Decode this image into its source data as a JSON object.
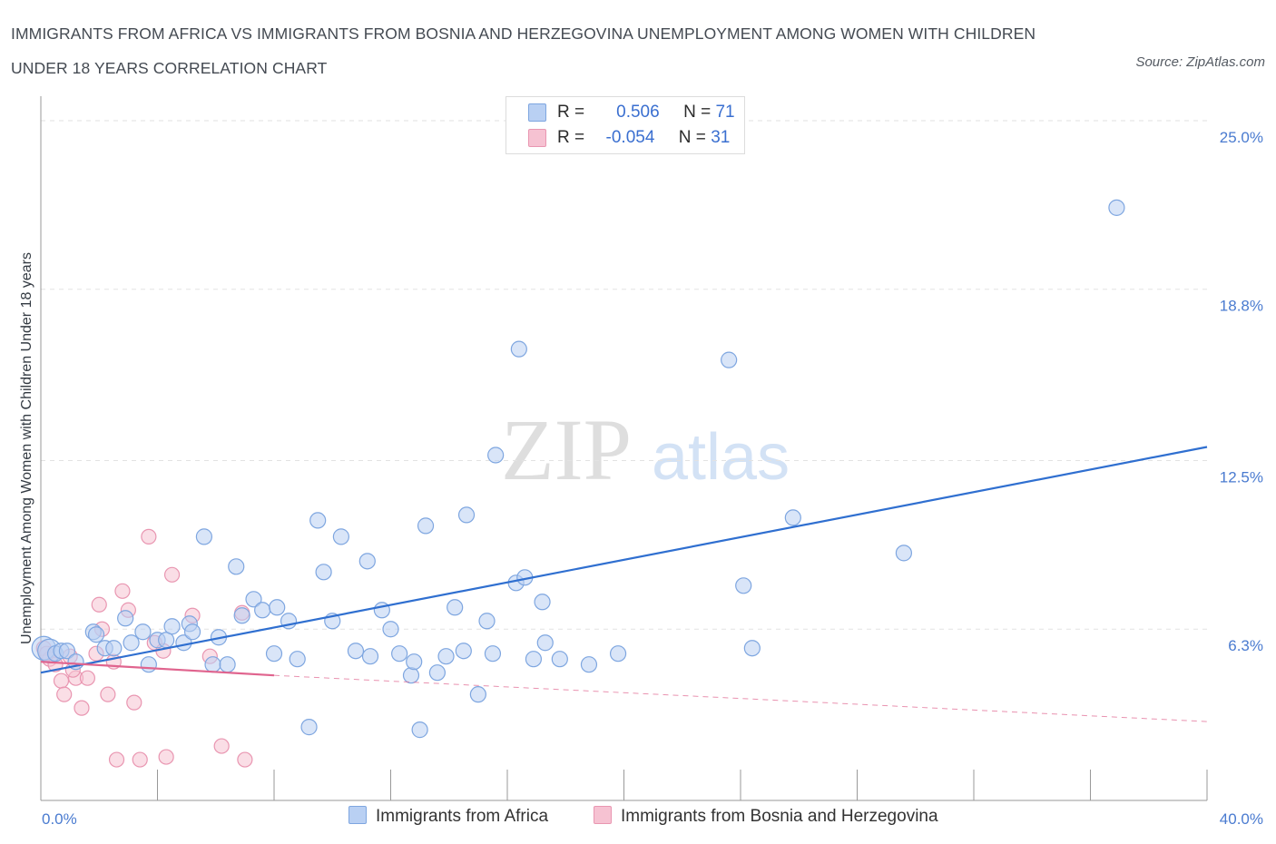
{
  "title": "IMMIGRANTS FROM AFRICA VS IMMIGRANTS FROM BOSNIA AND HERZEGOVINA UNEMPLOYMENT AMONG WOMEN WITH CHILDREN UNDER 18 YEARS CORRELATION CHART",
  "source": "Source: ZipAtlas.com",
  "watermark": {
    "zip": "ZIP",
    "atlas": "atlas"
  },
  "colors": {
    "africa_fill": "#b9d0f3",
    "africa_stroke": "#7ea6e0",
    "africa_line": "#2f6fd0",
    "bosnia_fill": "#f6c2d2",
    "bosnia_stroke": "#e996b1",
    "bosnia_line": "#e0648e",
    "axis_tick": "#4a7bd0",
    "grid": "#e2e2e2"
  },
  "legend": {
    "rows": [
      {
        "r_label": "R =",
        "r_value": "0.506",
        "n_label": "N =",
        "n_value": "71"
      },
      {
        "r_label": "R =",
        "r_value": "-0.054",
        "n_label": "N =",
        "n_value": "31"
      }
    ]
  },
  "chart_data": {
    "type": "scatter",
    "ylabel": "Unemployment Among Women with Children Under 18 years",
    "x_tick_labels": [
      "0.0%",
      "40.0%"
    ],
    "y_tick_labels": [
      "6.3%",
      "12.5%",
      "18.8%",
      "25.0%"
    ],
    "y_ticks": [
      6.3,
      12.5,
      18.8,
      25.0
    ],
    "xlim": [
      0,
      40
    ],
    "ylim": [
      0,
      25.5
    ],
    "grid": "horizontal dashed",
    "legend_placement": "top-center and bottom",
    "series": [
      {
        "name": "Immigrants from Africa",
        "trend": {
          "x": [
            0,
            40
          ],
          "y": [
            4.7,
            13.0
          ]
        },
        "points": [
          [
            0.1,
            5.6
          ],
          [
            0.3,
            5.5
          ],
          [
            0.5,
            5.4
          ],
          [
            0.7,
            5.5
          ],
          [
            0.9,
            5.5
          ],
          [
            1.2,
            5.1
          ],
          [
            1.8,
            6.2
          ],
          [
            1.9,
            6.1
          ],
          [
            2.2,
            5.6
          ],
          [
            2.5,
            5.6
          ],
          [
            2.9,
            6.7
          ],
          [
            3.1,
            5.8
          ],
          [
            3.5,
            6.2
          ],
          [
            3.7,
            5.0
          ],
          [
            4.0,
            5.9
          ],
          [
            4.3,
            5.9
          ],
          [
            4.5,
            6.4
          ],
          [
            4.9,
            5.8
          ],
          [
            5.1,
            6.5
          ],
          [
            5.2,
            6.2
          ],
          [
            5.6,
            9.7
          ],
          [
            5.9,
            5.0
          ],
          [
            6.1,
            6.0
          ],
          [
            6.4,
            5.0
          ],
          [
            6.7,
            8.6
          ],
          [
            6.9,
            6.8
          ],
          [
            7.3,
            7.4
          ],
          [
            7.6,
            7.0
          ],
          [
            8.0,
            5.4
          ],
          [
            8.1,
            7.1
          ],
          [
            8.5,
            6.6
          ],
          [
            8.8,
            5.2
          ],
          [
            9.2,
            2.7
          ],
          [
            9.5,
            10.3
          ],
          [
            9.7,
            8.4
          ],
          [
            10.0,
            6.6
          ],
          [
            10.3,
            9.7
          ],
          [
            10.8,
            5.5
          ],
          [
            11.2,
            8.8
          ],
          [
            11.3,
            5.3
          ],
          [
            11.7,
            7.0
          ],
          [
            12.0,
            6.3
          ],
          [
            12.3,
            5.4
          ],
          [
            12.7,
            4.6
          ],
          [
            12.8,
            5.1
          ],
          [
            13.0,
            2.6
          ],
          [
            13.2,
            10.1
          ],
          [
            13.6,
            4.7
          ],
          [
            13.9,
            5.3
          ],
          [
            14.2,
            7.1
          ],
          [
            14.5,
            5.5
          ],
          [
            14.6,
            10.5
          ],
          [
            15.0,
            3.9
          ],
          [
            15.3,
            6.6
          ],
          [
            15.5,
            5.4
          ],
          [
            15.6,
            12.7
          ],
          [
            16.3,
            8.0
          ],
          [
            16.4,
            16.6
          ],
          [
            16.6,
            8.2
          ],
          [
            16.9,
            5.2
          ],
          [
            17.2,
            7.3
          ],
          [
            17.3,
            5.8
          ],
          [
            17.8,
            5.2
          ],
          [
            18.8,
            5.0
          ],
          [
            19.8,
            5.4
          ],
          [
            23.6,
            16.2
          ],
          [
            24.1,
            7.9
          ],
          [
            24.4,
            5.6
          ],
          [
            25.8,
            10.4
          ],
          [
            29.6,
            9.1
          ],
          [
            36.9,
            21.8
          ]
        ]
      },
      {
        "name": "Immigrants from Bosnia and Herzegovina",
        "trend": {
          "x": [
            0,
            8.0
          ],
          "y": [
            5.1,
            4.6
          ]
        },
        "trend_extended": {
          "x": [
            8.0,
            40
          ],
          "y": [
            4.6,
            2.9
          ]
        },
        "points": [
          [
            0.1,
            5.6
          ],
          [
            0.3,
            5.2
          ],
          [
            0.5,
            5.0
          ],
          [
            0.7,
            4.4
          ],
          [
            0.8,
            3.9
          ],
          [
            1.0,
            5.3
          ],
          [
            1.2,
            4.5
          ],
          [
            1.4,
            3.4
          ],
          [
            1.6,
            4.5
          ],
          [
            1.9,
            5.4
          ],
          [
            2.0,
            7.2
          ],
          [
            2.1,
            6.3
          ],
          [
            2.3,
            3.9
          ],
          [
            2.5,
            5.1
          ],
          [
            2.6,
            1.5
          ],
          [
            2.8,
            7.7
          ],
          [
            3.0,
            7.0
          ],
          [
            3.2,
            3.6
          ],
          [
            3.4,
            1.5
          ],
          [
            3.7,
            9.7
          ],
          [
            3.9,
            5.8
          ],
          [
            4.2,
            5.5
          ],
          [
            4.3,
            1.6
          ],
          [
            4.5,
            8.3
          ],
          [
            5.2,
            6.8
          ],
          [
            5.8,
            5.3
          ],
          [
            6.2,
            2.0
          ],
          [
            6.9,
            6.9
          ],
          [
            7.0,
            1.5
          ],
          [
            0.2,
            5.4
          ],
          [
            1.1,
            4.8
          ]
        ]
      }
    ]
  },
  "bottom_legend": [
    "Immigrants from Africa",
    "Immigrants from Bosnia and Herzegovina"
  ]
}
